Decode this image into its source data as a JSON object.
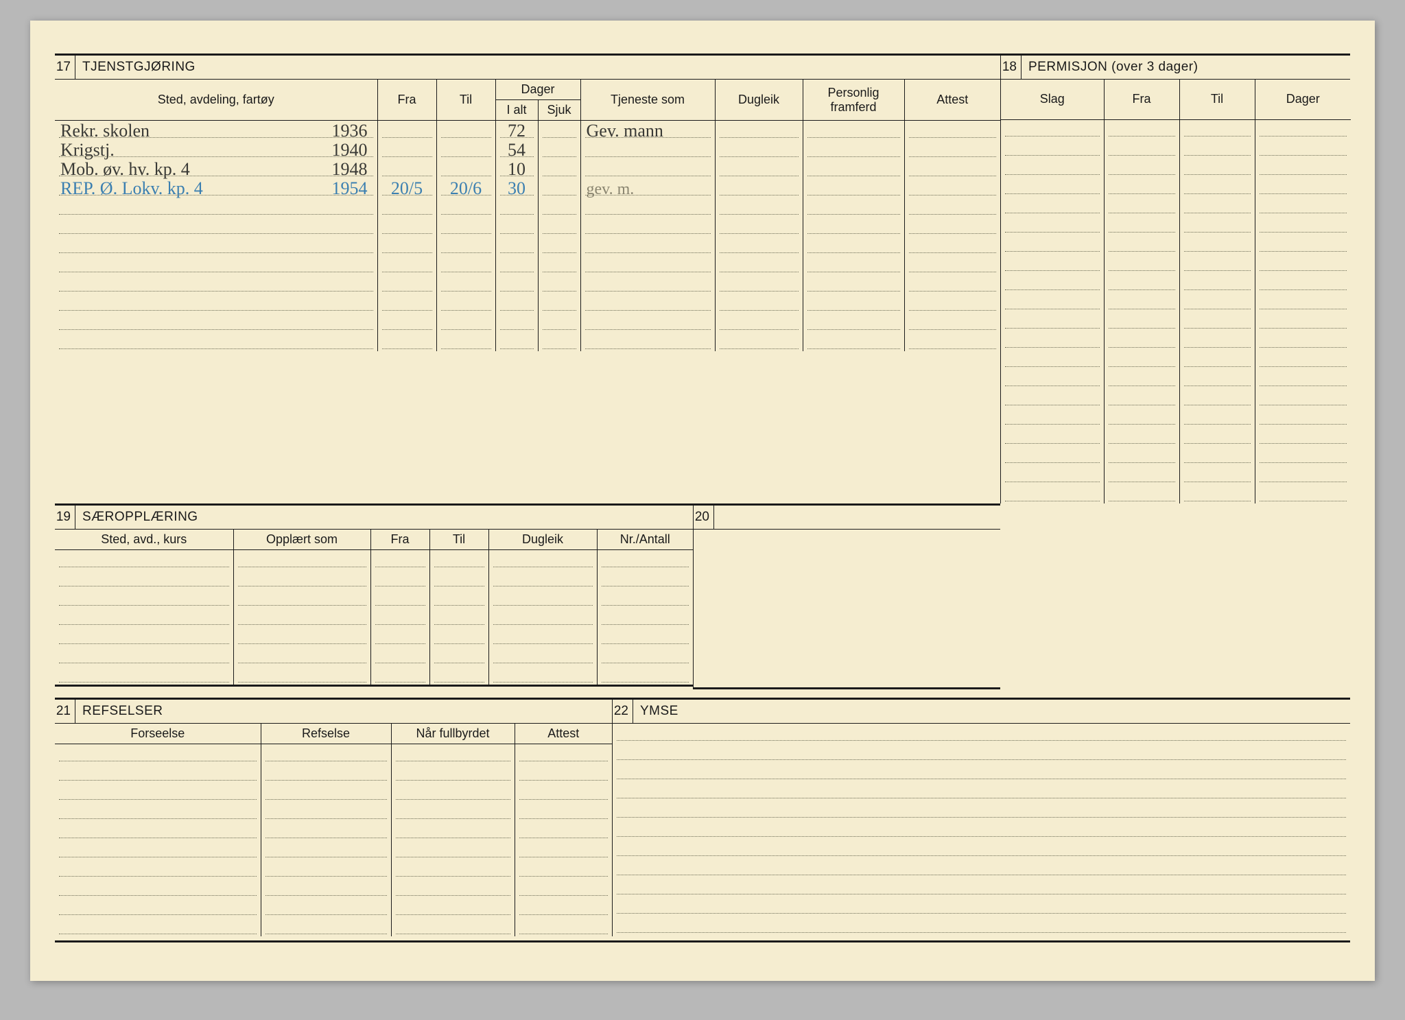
{
  "colors": {
    "paper": "#f5edd0",
    "ink": "#1a1a1a",
    "dotted": "#6b6b55",
    "handwriting_dark": "#3a3a36",
    "handwriting_blue": "#3b7fb0",
    "handwriting_faint": "#8a8570",
    "page_bg": "#b8b8b8"
  },
  "typography": {
    "printed_fontsize": 18,
    "section_fontsize": 19,
    "handwriting_fontsize": 26
  },
  "section17": {
    "number": "17",
    "title": "TJENSTGJØRING",
    "headers": {
      "sted": "Sted, avdeling, fartøy",
      "fra": "Fra",
      "til": "Til",
      "dager": "Dager",
      "ialt": "I alt",
      "sjuk": "Sjuk",
      "tjeneste": "Tjeneste som",
      "dugleik": "Dugleik",
      "personlig": "Personlig framferd",
      "attest": "Attest"
    },
    "rows": [
      {
        "sted": "Rekr. skolen",
        "year": "1936",
        "fra": "",
        "til": "",
        "ialt": "72",
        "sjuk": "",
        "tjeneste": "Gev. mann",
        "style": "dark"
      },
      {
        "sted": "Krigstj.",
        "year": "1940",
        "fra": "",
        "til": "",
        "ialt": "54",
        "sjuk": "",
        "tjeneste": "",
        "style": "dark"
      },
      {
        "sted": "Mob. øv. hv. kp. 4",
        "year": "1948",
        "fra": "",
        "til": "",
        "ialt": "10",
        "sjuk": "",
        "tjeneste": "",
        "style": "dark"
      },
      {
        "sted": "REP. Ø. Lokv. kp. 4",
        "year": "1954",
        "fra": "20/5",
        "til": "20/6",
        "ialt": "30",
        "sjuk": "",
        "tjeneste": "gev. m.",
        "style": "blue"
      }
    ],
    "blank_rows": 8
  },
  "section18": {
    "number": "18",
    "title": "PERMISJON (over 3 dager)",
    "headers": {
      "slag": "Slag",
      "fra": "Fra",
      "til": "Til",
      "dager": "Dager"
    },
    "blank_rows": 20
  },
  "section19": {
    "number": "19",
    "title": "SÆROPPLÆRING",
    "headers": {
      "sted": "Sted, avd., kurs",
      "opplart": "Opplært som",
      "fra": "Fra",
      "til": "Til",
      "dugleik": "Dugleik",
      "nr": "Nr./Antall"
    },
    "blank_rows": 7
  },
  "section20": {
    "number": "20",
    "title": ""
  },
  "section21": {
    "number": "21",
    "title": "REFSELSER",
    "headers": {
      "forseelse": "Forseelse",
      "refselse": "Refselse",
      "fullbyrdet": "Når fullbyrdet",
      "attest": "Attest"
    },
    "blank_rows": 10
  },
  "section22": {
    "number": "22",
    "title": "YMSE",
    "blank_rows": 11
  }
}
